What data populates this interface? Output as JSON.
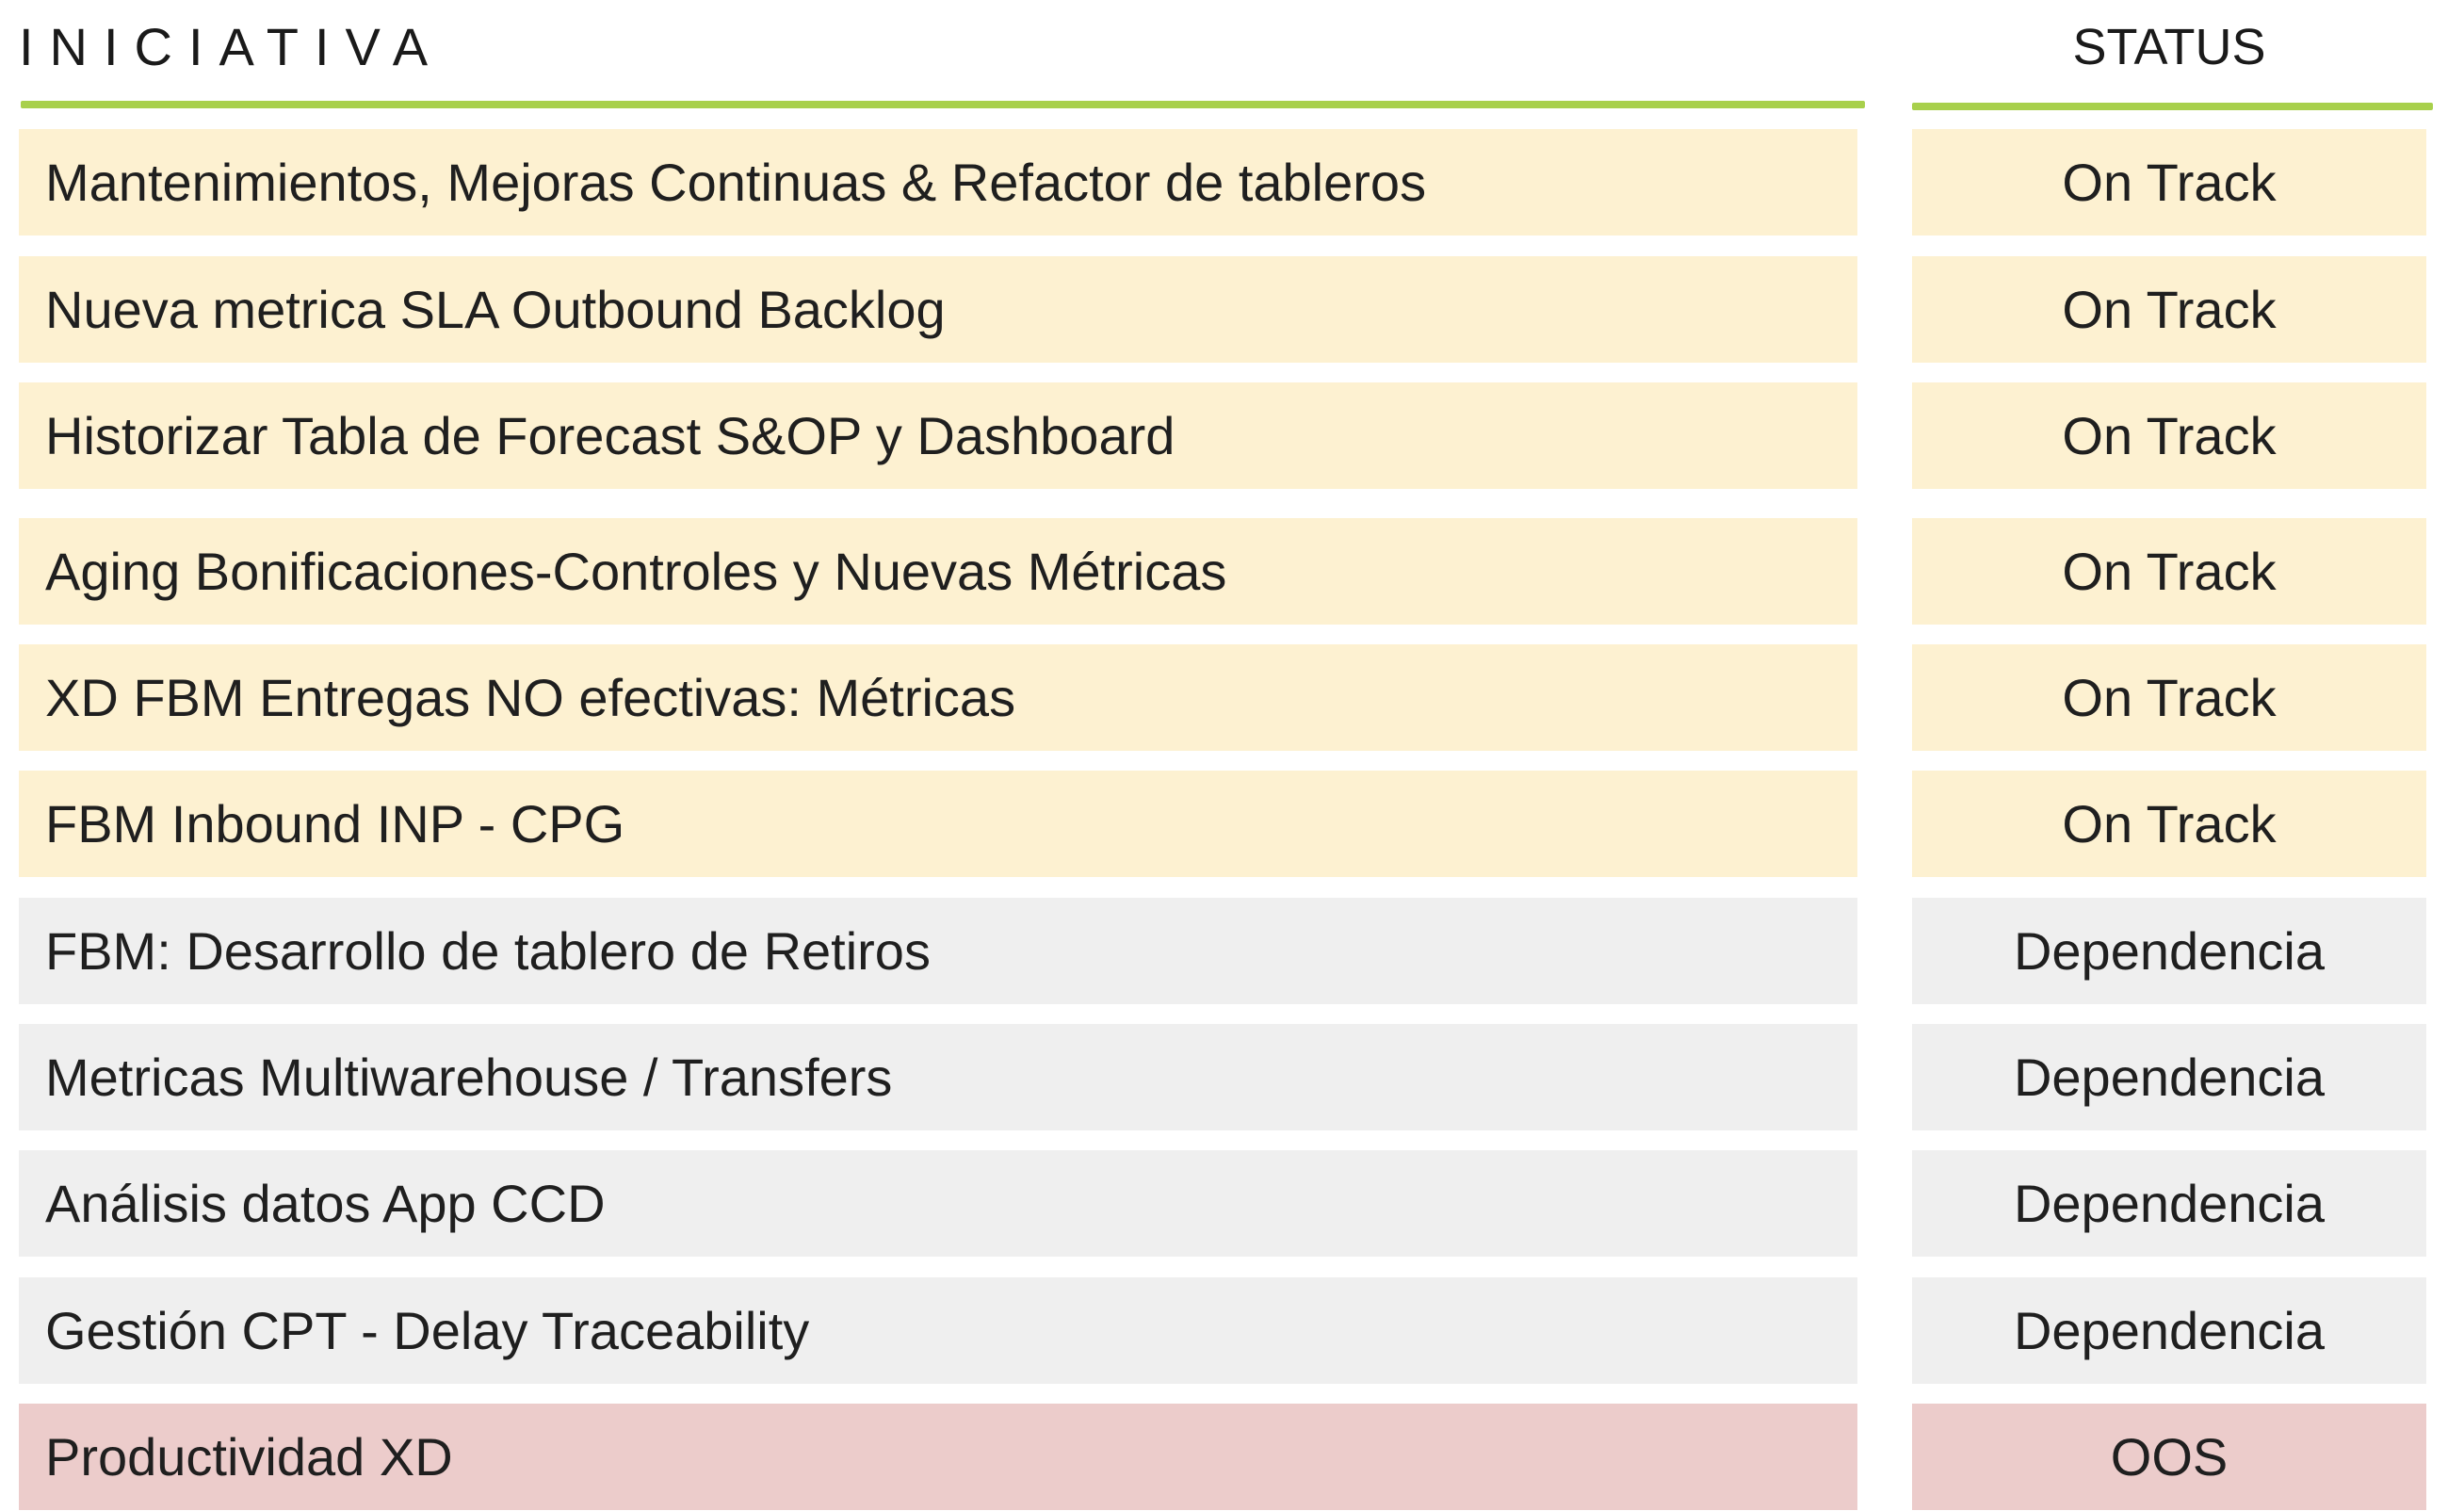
{
  "header": {
    "initiative_label": "INICIATIVA",
    "status_label": "STATUS"
  },
  "colors": {
    "accent_rule": "#a8d04c",
    "on_track_bg": "#fdf1d1",
    "dependencia_bg": "#efefef",
    "oos_bg": "#eccccb"
  },
  "rows": [
    {
      "initiative": "Mantenimientos, Mejoras Continuas & Refactor de tableros",
      "status": "On Track"
    },
    {
      "initiative": "Nueva metrica SLA Outbound Backlog",
      "status": "On Track"
    },
    {
      "initiative": "Historizar Tabla de Forecast S&OP y Dashboard",
      "status": "On Track"
    },
    {
      "initiative": "Aging Bonificaciones-Controles y Nuevas Métricas",
      "status": "On Track"
    },
    {
      "initiative": "XD FBM Entregas NO efectivas: Métricas",
      "status": "On Track"
    },
    {
      "initiative": "FBM Inbound INP - CPG",
      "status": "On Track"
    },
    {
      "initiative": "FBM: Desarrollo de tablero de Retiros",
      "status": "Dependencia"
    },
    {
      "initiative": "Metricas Multiwarehouse / Transfers",
      "status": "Dependencia"
    },
    {
      "initiative": "Análisis datos App CCD",
      "status": "Dependencia"
    },
    {
      "initiative": "Gestión CPT - Delay Traceability",
      "status": "Dependencia"
    },
    {
      "initiative": "Productividad XD",
      "status": "OOS"
    }
  ]
}
